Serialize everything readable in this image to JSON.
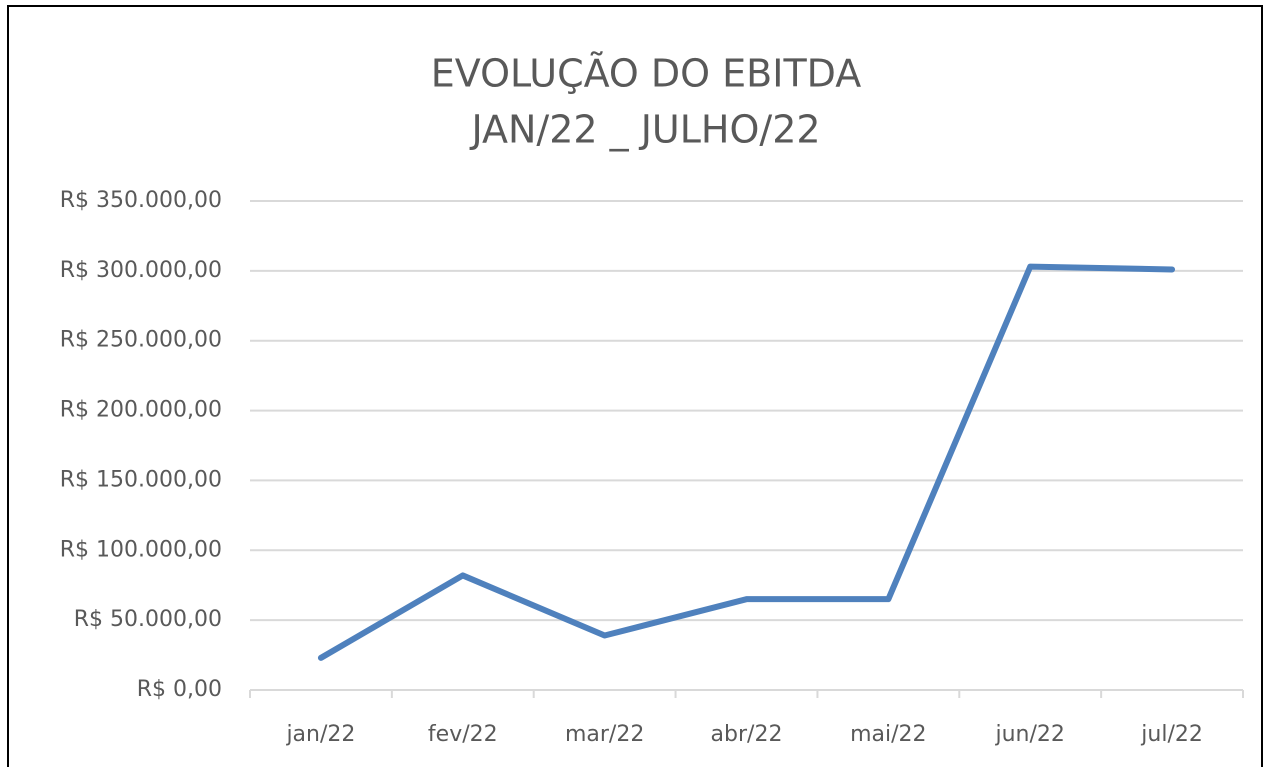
{
  "chart_data": {
    "type": "line",
    "title": [
      "EVOLUÇÃO DO EBITDA",
      "JAN/22 _ JULHO/22"
    ],
    "categories": [
      "jan/22",
      "fev/22",
      "mar/22",
      "abr/22",
      "mai/22",
      "jun/22",
      "jul/22"
    ],
    "series": [
      {
        "name": "EBITDA",
        "color": "#4f81bd",
        "values": [
          23000,
          82000,
          39000,
          65000,
          65000,
          303000,
          301000
        ]
      }
    ],
    "ylim": [
      0,
      350000
    ],
    "yticks": [
      {
        "value": 0,
        "label": "R$ 0,00"
      },
      {
        "value": 50000,
        "label": "R$ 50.000,00"
      },
      {
        "value": 100000,
        "label": "R$ 100.000,00"
      },
      {
        "value": 150000,
        "label": "R$ 150.000,00"
      },
      {
        "value": 200000,
        "label": "R$ 200.000,00"
      },
      {
        "value": 250000,
        "label": "R$ 250.000,00"
      },
      {
        "value": 300000,
        "label": "R$ 300.000,00"
      },
      {
        "value": 350000,
        "label": "R$ 350.000,00"
      }
    ],
    "grid": true
  }
}
